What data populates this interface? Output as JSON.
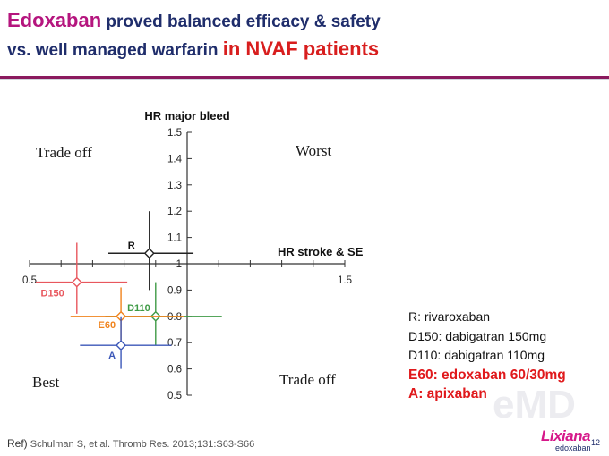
{
  "slide": {
    "title_line1_highlight": "Edoxaban",
    "title_line1_rest": " proved balanced efficacy & safety",
    "title_line2_rest": "vs. well managed warfarin ",
    "title_line2_highlight": "in NVAF patients",
    "colors": {
      "title_navy": "#1f2d6b",
      "title_magenta": "#b5157e",
      "title_red": "#d81e1e"
    }
  },
  "chart_data": {
    "type": "scatter",
    "x_axis": {
      "label": "HR stroke & SE",
      "ticks": [
        "0.5",
        "1.5"
      ],
      "range": [
        0.5,
        1.5
      ],
      "crosses_y_at": 1.0
    },
    "y_axis": {
      "label": "HR major bleed",
      "ticks": [
        "1.5",
        "1.4",
        "1.3",
        "1.2",
        "1.1",
        "1",
        "0.9",
        "0.8",
        "0.7",
        "0.6",
        "0.5"
      ],
      "range": [
        0.5,
        1.5
      ],
      "crosses_x_at": 1.0
    },
    "quadrants": {
      "top_left": "Trade off",
      "top_right": "Worst",
      "bottom_left": "Best",
      "bottom_right": "Trade off"
    },
    "points": [
      {
        "label": "R",
        "x": 0.88,
        "y": 1.04,
        "x_ci": [
          0.75,
          1.02
        ],
        "y_ci": [
          0.9,
          1.2
        ],
        "color": "#222222"
      },
      {
        "label": "D150",
        "x": 0.65,
        "y": 0.93,
        "x_ci": [
          0.52,
          0.81
        ],
        "y_ci": [
          0.81,
          1.08
        ],
        "color": "#e8575e"
      },
      {
        "label": "D110",
        "x": 0.9,
        "y": 0.8,
        "x_ci": [
          0.74,
          1.11
        ],
        "y_ci": [
          0.69,
          0.93
        ],
        "color": "#3e9a45"
      },
      {
        "label": "E60",
        "x": 0.79,
        "y": 0.8,
        "x_ci": [
          0.63,
          0.99
        ],
        "y_ci": [
          0.71,
          0.91
        ],
        "color": "#f0831c"
      },
      {
        "label": "A",
        "x": 0.79,
        "y": 0.69,
        "x_ci": [
          0.66,
          0.95
        ],
        "y_ci": [
          0.6,
          0.8
        ],
        "color": "#3b57b8"
      }
    ]
  },
  "legend": {
    "items": [
      {
        "text": "R: rivaroxaban",
        "highlight": false
      },
      {
        "text": "D150: dabigatran 150mg",
        "highlight": false
      },
      {
        "text": "D110: dabigatran 110mg",
        "highlight": false
      },
      {
        "text": "E60: edoxaban 60/30mg",
        "highlight": true
      },
      {
        "text": "A: apixaban",
        "highlight": true
      }
    ]
  },
  "footer": {
    "ref_prefix": "Ref)",
    "ref_text": " Schulman S, et al. Thromb Res. 2013;131:S63-S66",
    "page_number": "12",
    "brand": "Lixiana",
    "brand_sub": "edoxaban",
    "watermark": "eMD"
  }
}
